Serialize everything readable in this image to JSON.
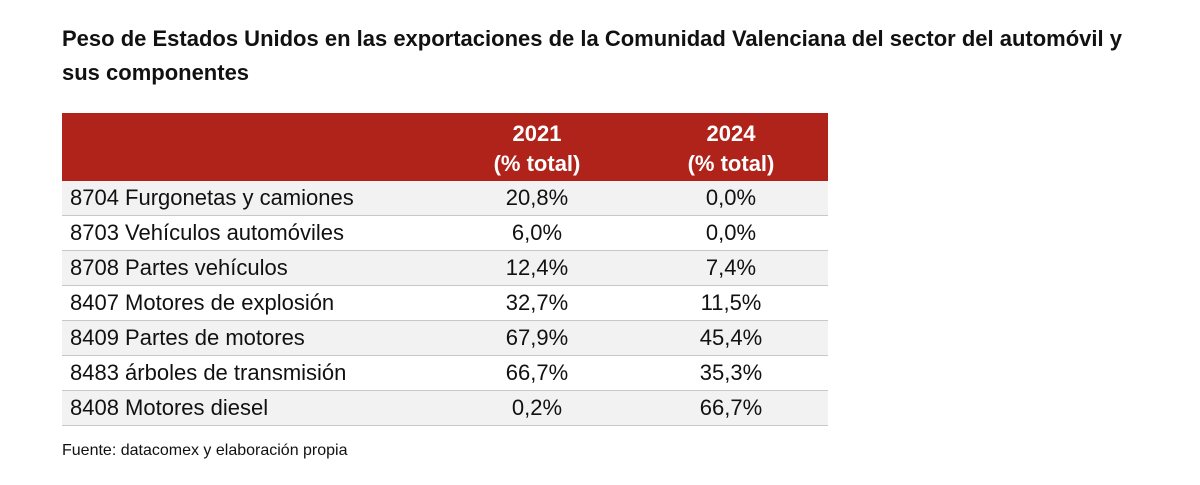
{
  "title": "Peso de Estados Unidos en las exportaciones de la Comunidad Valenciana del sector del automóvil y sus componentes",
  "table": {
    "header": [
      {
        "year": "2021",
        "unit": "(% total)"
      },
      {
        "year": "2024",
        "unit": "(% total)"
      }
    ],
    "rows": [
      [
        "8704 Furgonetas y camiones",
        "20,8%",
        "0,0%"
      ],
      [
        "8703 Vehículos automóviles",
        "6,0%",
        "0,0%"
      ],
      [
        "8708 Partes vehículos",
        "12,4%",
        "7,4%"
      ],
      [
        "8407 Motores de explosión",
        "32,7%",
        "11,5%"
      ],
      [
        "8409 Partes de motores",
        "67,9%",
        "45,4%"
      ],
      [
        "8483 árboles de transmisión",
        "66,7%",
        "35,3%"
      ],
      [
        "8408 Motores diesel",
        "0,2%",
        "66,7%"
      ]
    ]
  },
  "source": "Fuente: datacomex y elaboración propia"
}
